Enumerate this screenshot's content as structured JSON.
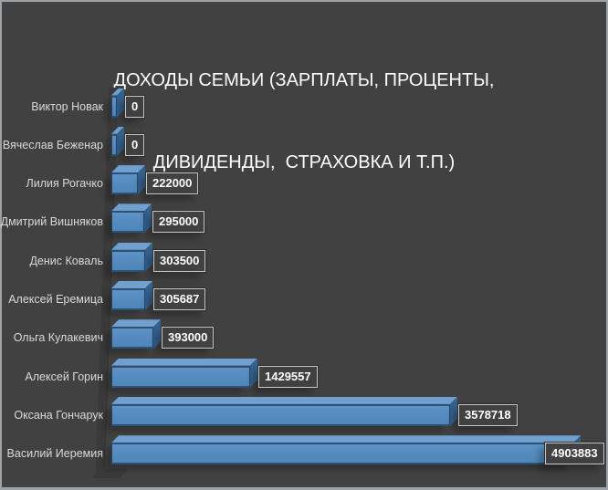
{
  "title": {
    "line1": "ДОХОДЫ СЕМЬИ (ЗАРПЛАТЫ, ПРОЦЕНТЫ,",
    "line2": "ДИВИДЕНДЫ,  СТРАХОВКА И Т.П.)"
  },
  "colors": {
    "background": "#414141",
    "frame_border": "#9BA2A9",
    "bar_front": "#548ABD",
    "bar_top": "#6FA0CF",
    "bar_side": "#35618D",
    "bar_outline": "#26456A",
    "category_text": "#D9D9D9",
    "value_text": "#FFFFFF",
    "value_box_border": "#C6C6C6"
  },
  "chart_data": {
    "type": "bar",
    "orientation": "horizontal",
    "style": "3d",
    "title": "ДОХОДЫ СЕМЬИ (ЗАРПЛАТЫ, ПРОЦЕНТЫ, ДИВИДЕНДЫ, СТРАХОВКА И Т.П.)",
    "categories": [
      "Виктор Новак",
      "Вячеслав Беженар",
      "Лилия Рогачко",
      "Дмитрий Вишняков",
      "Денис Коваль",
      "Алексей Еремица",
      "Ольга Кулакевич",
      "Алексей Горин",
      "Оксана Гончарук",
      "Василий Иеремия"
    ],
    "values": [
      0,
      0,
      222000,
      295000,
      303500,
      305687,
      393000,
      1429557,
      3578718,
      4903883
    ],
    "value_labels": [
      "0",
      "0",
      "222000",
      "295000",
      "303500",
      "305687",
      "393000",
      "1429557",
      "3578718",
      "4903883"
    ],
    "xlim": [
      0,
      4903883
    ],
    "grid": false,
    "legend": false,
    "data_labels": "outside-end",
    "category_order": "top-to-bottom"
  }
}
